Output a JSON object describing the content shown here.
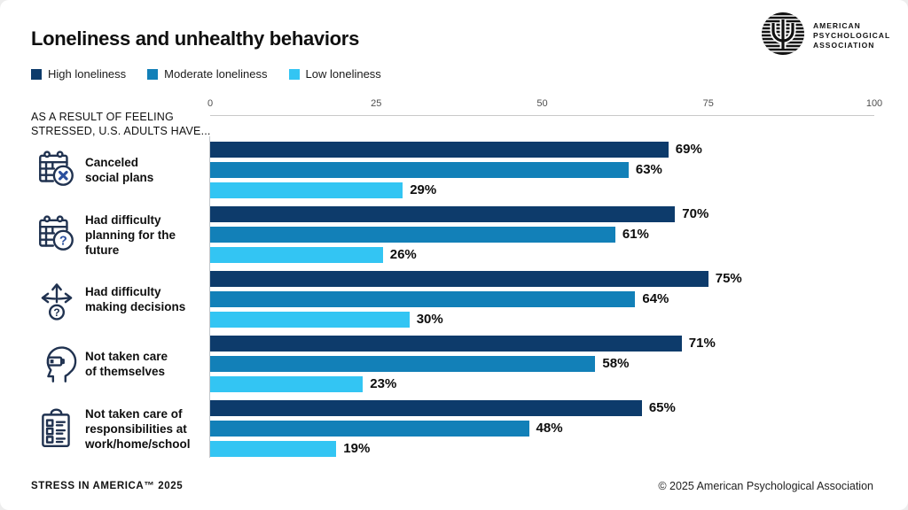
{
  "header": {
    "title": "Loneliness and unhealthy behaviors"
  },
  "legend": [
    {
      "label": "High loneliness",
      "color": "#0d3b6b"
    },
    {
      "label": "Moderate loneliness",
      "color": "#1280b8"
    },
    {
      "label": "Low loneliness",
      "color": "#33c5f3"
    }
  ],
  "logo": {
    "lines": [
      "AMERICAN",
      "PSYCHOLOGICAL",
      "ASSOCIATION"
    ]
  },
  "axis_intro": "AS A RESULT OF FEELING STRESSED, U.S. ADULTS HAVE...",
  "chart_data": {
    "type": "bar",
    "orientation": "horizontal",
    "title": "Loneliness and unhealthy behaviors",
    "xlim": [
      0,
      100
    ],
    "x_ticks": [
      0,
      25,
      50,
      75,
      100
    ],
    "value_suffix": "%",
    "grid": false,
    "legend_position": "top-left",
    "categories": [
      {
        "label": "Canceled\nsocial plans",
        "icon": "calendar-x"
      },
      {
        "label": "Had difficulty\nplanning for the\nfuture",
        "icon": "calendar-question"
      },
      {
        "label": "Had difficulty\nmaking decisions",
        "icon": "decision-arrows"
      },
      {
        "label": "Not taken care\nof themselves",
        "icon": "head-battery"
      },
      {
        "label": "Not taken care of\nresponsibilities at\nwork/home/school",
        "icon": "clipboard-checklist"
      }
    ],
    "series": [
      {
        "name": "High loneliness",
        "color": "#0d3b6b",
        "values": [
          69,
          70,
          75,
          71,
          65
        ]
      },
      {
        "name": "Moderate loneliness",
        "color": "#1280b8",
        "values": [
          63,
          61,
          64,
          58,
          48
        ]
      },
      {
        "name": "Low loneliness",
        "color": "#33c5f3",
        "values": [
          29,
          26,
          30,
          23,
          19
        ]
      }
    ]
  },
  "footer": {
    "left": "STRESS IN AMERICA™ 2025",
    "right": "© 2025 American Psychological Association"
  }
}
